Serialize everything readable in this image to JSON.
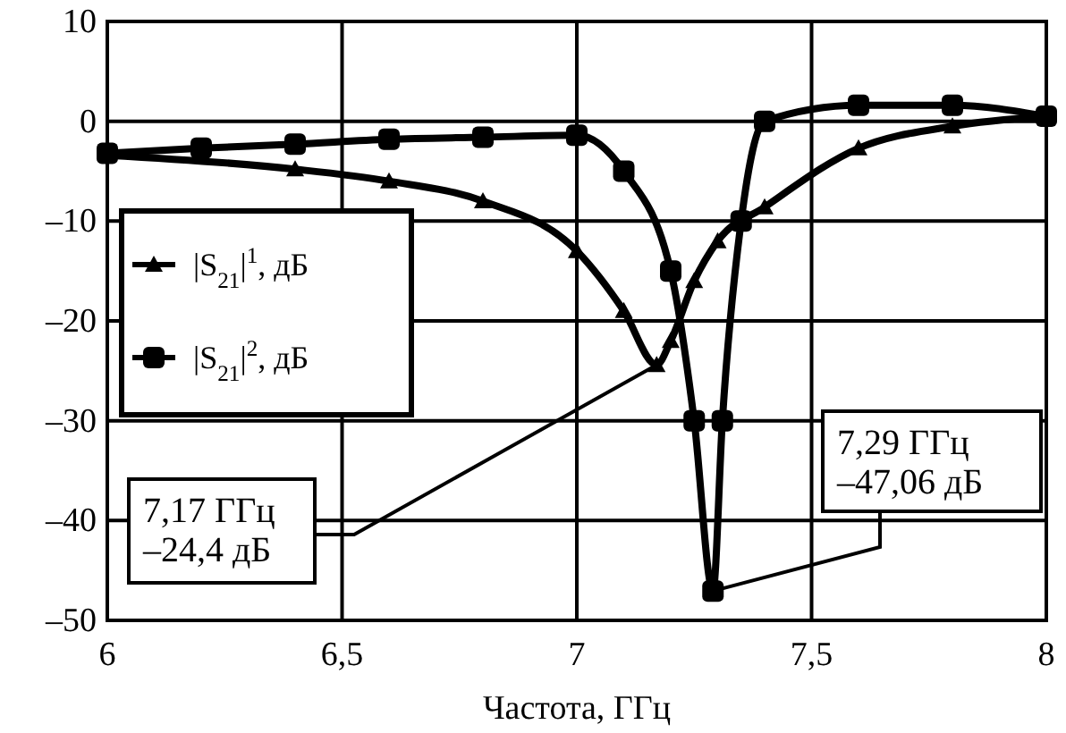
{
  "chart_data": {
    "type": "line",
    "xlabel": "Частота, ГГц",
    "xlim": [
      6,
      8
    ],
    "xticks": [
      6,
      {
        "value": 6.5,
        "label": "6,5"
      },
      7,
      {
        "value": 7.5,
        "label": "7,5"
      },
      8
    ],
    "ylim": [
      -50,
      10
    ],
    "yticks": [
      {
        "value": -50,
        "label": "–50"
      },
      {
        "value": -40,
        "label": "–40"
      },
      {
        "value": -30,
        "label": "–30"
      },
      {
        "value": -20,
        "label": "–20"
      },
      {
        "value": -10,
        "label": "–10"
      },
      0,
      10
    ],
    "grid": true,
    "legend": "left",
    "line_style": "solid",
    "series": [
      {
        "name": "|S$_{21}$|$^{1}$, дБ",
        "color": "#000000",
        "marker": "triangle",
        "x": [
          6,
          6.4,
          6.6,
          6.8,
          7.0,
          7.1,
          7.17,
          7.2,
          7.25,
          7.3,
          7.4,
          7.6,
          7.8,
          8
        ],
        "values": [
          -3.4,
          -4.8,
          -6,
          -8,
          -13,
          -19,
          -24.4,
          -22,
          -16,
          -12,
          -8.6,
          -2.7,
          -0.5,
          0.5
        ]
      },
      {
        "name": "|S$_{21}$|$^{2}$, дБ",
        "color": "#000000",
        "marker": "square",
        "x": [
          6,
          6.2,
          6.4,
          6.6,
          6.8,
          7.0,
          7.1,
          7.2,
          7.25,
          7.29,
          7.31,
          7.35,
          7.4,
          7.6,
          7.8,
          8
        ],
        "values": [
          -3.2,
          -2.7,
          -2.3,
          -1.8,
          -1.6,
          -1.4,
          -5,
          -15,
          -30,
          -47.06,
          -30,
          -10,
          0,
          1.6,
          1.6,
          0.5
        ]
      }
    ],
    "annotations": [
      {
        "text": "7,17 ГГц\n–24,4 дБ",
        "x": 7.17,
        "y": -24.4
      },
      {
        "text": "7,29 ГГц\n–47,06 дБ",
        "x": 7.29,
        "y": -47.06
      }
    ]
  }
}
